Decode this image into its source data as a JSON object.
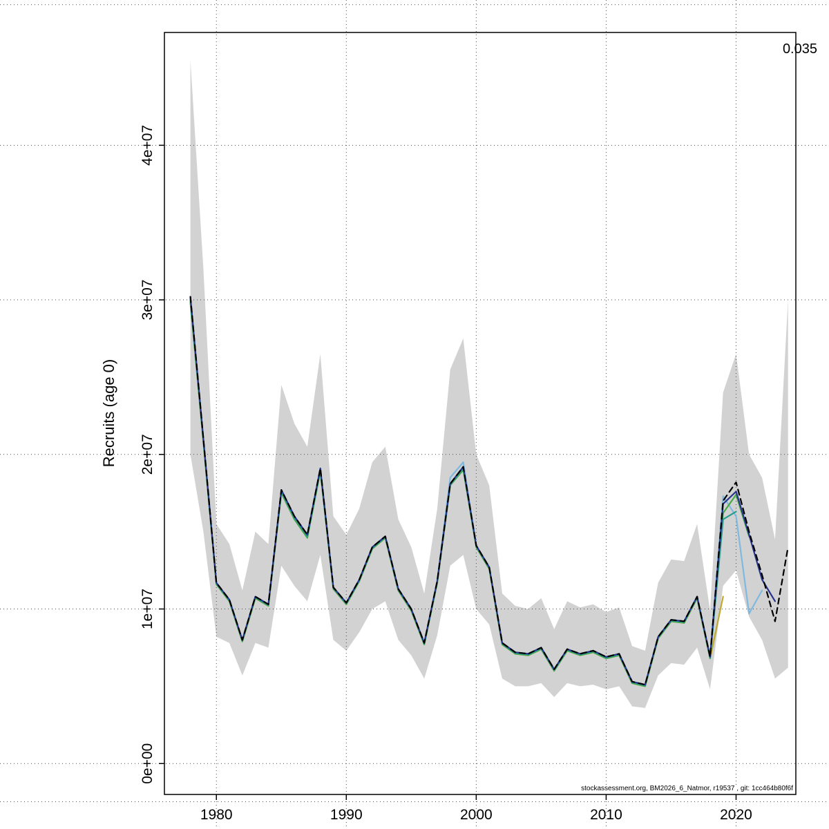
{
  "figure": {
    "corner_label": "0.035",
    "caption": "stockassessment.org, BM2026_6_Natmor, r19537 , git: 1cc464b80f6f"
  },
  "chart_data": {
    "type": "line",
    "title": "",
    "xlabel": "",
    "ylabel": "Recruits (age 0)",
    "grid": true,
    "legend": "none",
    "xlim": [
      1976.0,
      2024.6
    ],
    "ylim": [
      -2000000,
      47300000
    ],
    "xticks": [
      1980,
      1990,
      2000,
      2010,
      2020
    ],
    "xtick_labels": [
      "1980",
      "1990",
      "2000",
      "2010",
      "2020"
    ],
    "yticks": [
      0,
      10000000,
      20000000,
      30000000,
      40000000
    ],
    "ytick_labels": [
      "0e+00",
      "1e+07",
      "2e+07",
      "3e+07",
      "4e+07"
    ],
    "extra_gridlines_y": [
      49100000,
      -2470000
    ],
    "years": [
      1978,
      1979,
      1980,
      1981,
      1982,
      1983,
      1984,
      1985,
      1986,
      1987,
      1988,
      1989,
      1990,
      1991,
      1992,
      1993,
      1994,
      1995,
      1996,
      1997,
      1998,
      1999,
      2000,
      2001,
      2002,
      2003,
      2004,
      2005,
      2006,
      2007,
      2008,
      2009,
      2010,
      2011,
      2012,
      2013,
      2014,
      2015,
      2016,
      2017,
      2018,
      2019,
      2020,
      2021,
      2022,
      2023,
      2024
    ],
    "band": {
      "name": "confidence-band",
      "color": "#d2d2d2",
      "lo": [
        20000000,
        15000000,
        8200000,
        7800000,
        5700000,
        7800000,
        7500000,
        12800000,
        11500000,
        10500000,
        13500000,
        8000000,
        7300000,
        8500000,
        10000000,
        10500000,
        8000000,
        7000000,
        5500000,
        8300000,
        12800000,
        13500000,
        10000000,
        9000000,
        5500000,
        5000000,
        5000000,
        5200000,
        4300000,
        5200000,
        5000000,
        5100000,
        4800000,
        5000000,
        3700000,
        3600000,
        5700000,
        6500000,
        6400000,
        7500000,
        4800000,
        11500000,
        12500000,
        9500000,
        8000000,
        5500000,
        6200000
      ],
      "hi": [
        45500000,
        32000000,
        15500000,
        14200000,
        11200000,
        15000000,
        14200000,
        24500000,
        22000000,
        20500000,
        26500000,
        16000000,
        14800000,
        16500000,
        19500000,
        20500000,
        15800000,
        14000000,
        11000000,
        16500000,
        25500000,
        27500000,
        20000000,
        18000000,
        11000000,
        10200000,
        10000000,
        10700000,
        8700000,
        10500000,
        10100000,
        10300000,
        9800000,
        10100000,
        7600000,
        7300000,
        11700000,
        13200000,
        13100000,
        15500000,
        9900000,
        24000000,
        26500000,
        20000000,
        18500000,
        14500000,
        30000000
      ]
    },
    "series": [
      {
        "name": "run-lightblue",
        "color": "#7fb9e0",
        "dash": "",
        "values": [
          30200000,
          21000000,
          11700000,
          10600000,
          8000000,
          10800000,
          10300000,
          17700000,
          16000000,
          14800000,
          19100000,
          11400000,
          10400000,
          11900000,
          14000000,
          14700000,
          11300000,
          10000000,
          7800000,
          11800000,
          18500000,
          19500000,
          14100000,
          12700000,
          7800000,
          7200000,
          7100000,
          7500000,
          6100000,
          7400000,
          7100000,
          7300000,
          6900000,
          7100000,
          5300000,
          5100000,
          8200000,
          9300000,
          9200000,
          10800000,
          6900000,
          17300000,
          16000000,
          9700000,
          11200000,
          null,
          null
        ]
      },
      {
        "name": "run-olive",
        "color": "#bfa92e",
        "dash": "",
        "values": [
          30000000,
          20900000,
          11600000,
          10500000,
          7900000,
          10700000,
          10200000,
          17600000,
          15900000,
          14700000,
          19000000,
          11300000,
          10300000,
          11800000,
          13900000,
          14600000,
          11200000,
          9900000,
          7700000,
          11700000,
          18000000,
          19100000,
          14000000,
          12600000,
          7700000,
          7100000,
          7000000,
          7400000,
          6000000,
          7300000,
          7000000,
          7200000,
          6800000,
          7000000,
          5200000,
          5000000,
          8100000,
          9200000,
          9100000,
          10700000,
          6800000,
          10800000,
          null,
          null,
          null,
          null,
          null
        ]
      },
      {
        "name": "run-green",
        "color": "#49a942",
        "dash": "",
        "values": [
          29800000,
          20800000,
          11600000,
          10500000,
          7900000,
          10700000,
          10200000,
          17500000,
          15800000,
          14600000,
          18900000,
          11300000,
          10300000,
          11800000,
          13900000,
          14600000,
          11200000,
          9900000,
          7700000,
          11700000,
          18000000,
          19000000,
          14000000,
          12600000,
          7700000,
          7100000,
          7000000,
          7400000,
          6000000,
          7300000,
          7000000,
          7200000,
          6800000,
          7000000,
          5200000,
          5000000,
          8100000,
          9200000,
          9100000,
          10700000,
          6800000,
          16200000,
          17400000,
          14700000,
          null,
          null,
          null
        ]
      },
      {
        "name": "run-teal",
        "color": "#2a9d8f",
        "dash": "",
        "values": [
          30000000,
          20900000,
          11650000,
          10550000,
          7950000,
          10750000,
          10250000,
          17600000,
          15900000,
          14700000,
          19000000,
          11350000,
          10350000,
          11850000,
          13950000,
          14650000,
          11250000,
          9950000,
          7750000,
          11750000,
          18050000,
          19100000,
          14050000,
          12650000,
          7750000,
          7150000,
          7050000,
          7450000,
          6050000,
          7350000,
          7050000,
          7250000,
          6850000,
          7050000,
          5250000,
          5050000,
          8150000,
          9250000,
          9150000,
          10750000,
          6850000,
          15800000,
          16300000,
          null,
          null,
          null,
          null
        ]
      },
      {
        "name": "run-darkblue",
        "color": "#27348b",
        "dash": "",
        "values": [
          30200000,
          21000000,
          11700000,
          10600000,
          8000000,
          10800000,
          10300000,
          17700000,
          16000000,
          14800000,
          19100000,
          11400000,
          10400000,
          11900000,
          14000000,
          14700000,
          11300000,
          10000000,
          7800000,
          11800000,
          18100000,
          19200000,
          14100000,
          12700000,
          7800000,
          7200000,
          7100000,
          7500000,
          6100000,
          7400000,
          7100000,
          7300000,
          6900000,
          7100000,
          5300000,
          5100000,
          8200000,
          9300000,
          9200000,
          10800000,
          6900000,
          16800000,
          17600000,
          14800000,
          11900000,
          10500000,
          null
        ]
      },
      {
        "name": "current-run-dashed",
        "color": "#000000",
        "dash": "8 6",
        "values": [
          30200000,
          21000000,
          11700000,
          10600000,
          8000000,
          10800000,
          10300000,
          17700000,
          16000000,
          14800000,
          19100000,
          11400000,
          10400000,
          11900000,
          14000000,
          14700000,
          11300000,
          10000000,
          7800000,
          11800000,
          18100000,
          19200000,
          14100000,
          12700000,
          7800000,
          7200000,
          7100000,
          7500000,
          6100000,
          7400000,
          7100000,
          7300000,
          6900000,
          7100000,
          5300000,
          5100000,
          8200000,
          9300000,
          9200000,
          10800000,
          6900000,
          17000000,
          18200000,
          15000000,
          12200000,
          9200000,
          14000000
        ]
      }
    ]
  }
}
